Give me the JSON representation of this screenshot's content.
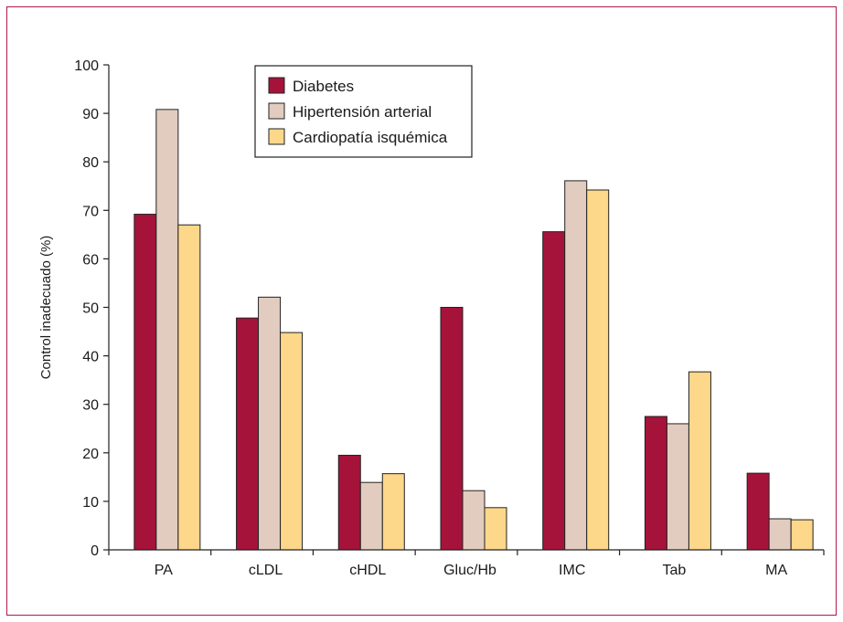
{
  "chart_data": {
    "type": "bar",
    "ylabel": "Control inadecuado (%)",
    "xlabel": "",
    "ylim": [
      0,
      100
    ],
    "yticks": [
      0,
      10,
      20,
      30,
      40,
      50,
      60,
      70,
      80,
      90,
      100
    ],
    "categories": [
      "PA",
      "cLDL",
      "cHDL",
      "Gluc/Hb",
      "IMC",
      "Tab",
      "MA"
    ],
    "series": [
      {
        "name": "Diabetes",
        "color": "#a5133a",
        "values": [
          69.2,
          47.8,
          19.5,
          50.0,
          65.6,
          27.5,
          15.8
        ]
      },
      {
        "name": "Hipertensión arterial",
        "color": "#e2ccbf",
        "values": [
          90.8,
          52.1,
          13.9,
          12.2,
          76.1,
          26.0,
          6.4
        ]
      },
      {
        "name": "Cardiopatía isquémica",
        "color": "#fdd78a",
        "values": [
          67.0,
          44.8,
          15.7,
          8.7,
          74.2,
          36.7,
          6.2
        ]
      }
    ],
    "legend_position": "top-left",
    "grid": false
  }
}
